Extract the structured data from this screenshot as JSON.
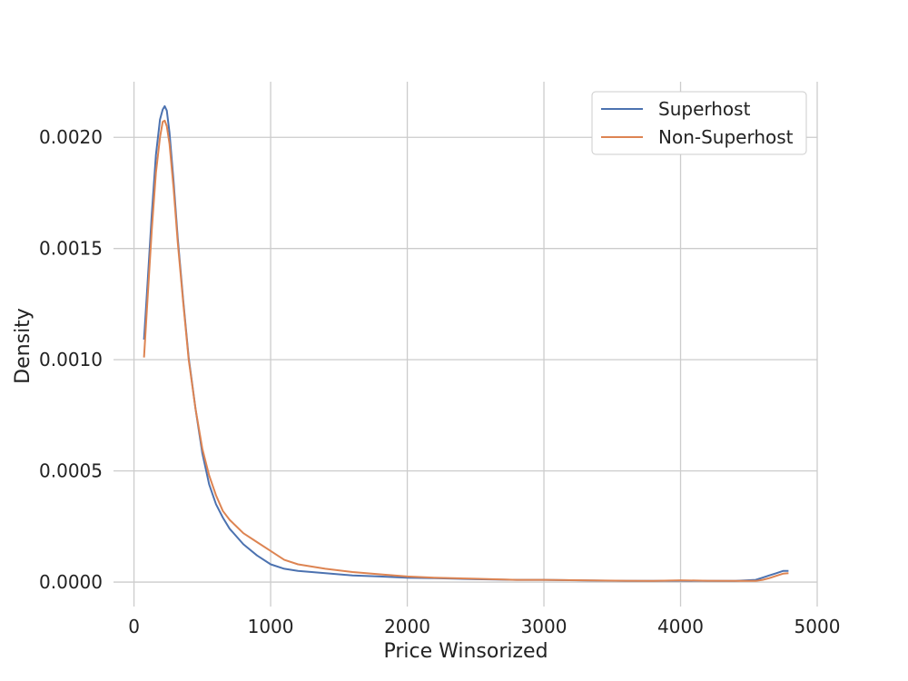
{
  "chart_data": {
    "type": "line",
    "title": "",
    "xlabel": "Price Winsorized",
    "ylabel": "Density",
    "xlim": [
      -150,
      5000
    ],
    "ylim": [
      -0.00011,
      0.00225
    ],
    "x_ticks": [
      0,
      1000,
      2000,
      3000,
      4000,
      5000
    ],
    "x_tick_labels": [
      "0",
      "1000",
      "2000",
      "3000",
      "4000",
      "5000"
    ],
    "y_ticks": [
      0.0,
      0.0005,
      0.001,
      0.0015,
      0.002
    ],
    "y_tick_labels": [
      "0.0000",
      "0.0005",
      "0.0010",
      "0.0015",
      "0.0020"
    ],
    "grid": true,
    "legend_position": "top-right",
    "series": [
      {
        "name": "Superhost",
        "color": "#4c72b0",
        "x": [
          73,
          100,
          130,
          160,
          190,
          210,
          225,
          240,
          260,
          290,
          320,
          360,
          400,
          450,
          500,
          550,
          600,
          650,
          700,
          800,
          900,
          1000,
          1100,
          1200,
          1400,
          1600,
          1800,
          2000,
          2200,
          2500,
          2800,
          3000,
          3300,
          3600,
          3800,
          4000,
          4200,
          4400,
          4550,
          4600,
          4650,
          4700,
          4750,
          4790
        ],
        "y": [
          0.00109,
          0.00135,
          0.00165,
          0.00192,
          0.00208,
          0.002125,
          0.00214,
          0.00212,
          0.00202,
          0.0018,
          0.00155,
          0.00127,
          0.00101,
          0.00078,
          0.00058,
          0.00044,
          0.00035,
          0.00029,
          0.00024,
          0.00017,
          0.00012,
          8e-05,
          6e-05,
          5e-05,
          4e-05,
          3e-05,
          2.5e-05,
          2e-05,
          1.8e-05,
          1.3e-05,
          1e-05,
          1e-05,
          7e-06,
          5e-06,
          5e-06,
          6e-06,
          5e-06,
          5e-06,
          1e-05,
          2e-05,
          3e-05,
          4e-05,
          5e-05,
          5e-05
        ]
      },
      {
        "name": "Non-Superhost",
        "color": "#dd8452",
        "x": [
          73,
          100,
          130,
          160,
          190,
          210,
          225,
          240,
          260,
          290,
          320,
          360,
          400,
          450,
          500,
          550,
          600,
          650,
          700,
          800,
          900,
          1000,
          1100,
          1200,
          1400,
          1600,
          1800,
          2000,
          2200,
          2500,
          2800,
          3000,
          3300,
          3600,
          3800,
          4000,
          4200,
          4400,
          4550,
          4600,
          4650,
          4700,
          4750,
          4790
        ],
        "y": [
          0.00101,
          0.00128,
          0.00158,
          0.00184,
          0.002,
          0.00207,
          0.002075,
          0.00205,
          0.00197,
          0.00177,
          0.00153,
          0.00126,
          0.001,
          0.00078,
          0.0006,
          0.00048,
          0.00039,
          0.00032,
          0.00028,
          0.00022,
          0.00018,
          0.00014,
          0.0001,
          8e-05,
          6e-05,
          4.5e-05,
          3.5e-05,
          2.5e-05,
          2e-05,
          1.5e-05,
          1e-05,
          1e-05,
          8e-06,
          6e-06,
          5e-06,
          8e-06,
          6e-06,
          5e-06,
          5e-06,
          1e-05,
          1.8e-05,
          2.8e-05,
          3.8e-05,
          4e-05
        ]
      }
    ]
  }
}
